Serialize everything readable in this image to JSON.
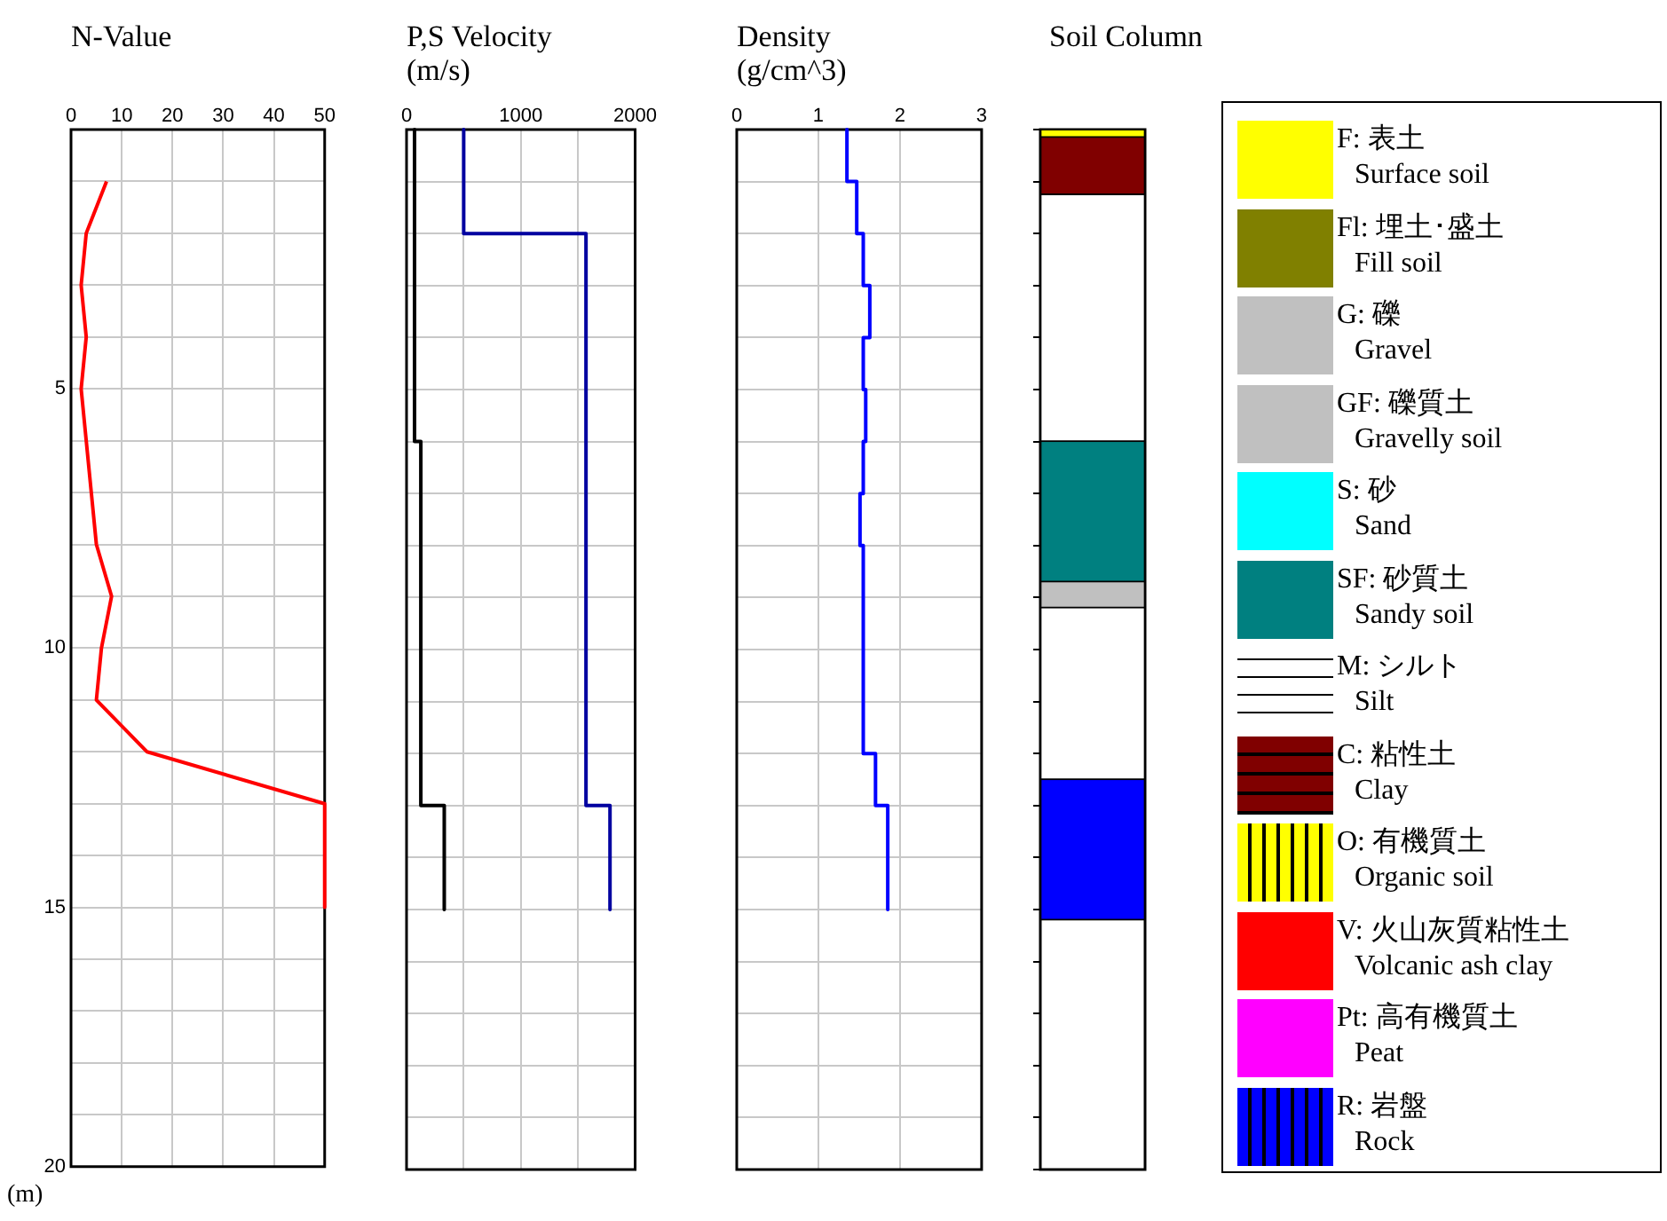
{
  "chart_data": [
    {
      "type": "line",
      "title": "N-Value",
      "ylabel": "(m)",
      "x": [
        7,
        3,
        2,
        3,
        2,
        3,
        4,
        5,
        8,
        6,
        5,
        15,
        50,
        50
      ],
      "values": [
        1,
        2,
        3,
        4,
        5,
        6,
        7,
        8,
        9,
        10,
        11,
        12,
        13,
        15
      ],
      "color": "#ff0000",
      "marker": "none",
      "xlim": [
        0,
        50
      ],
      "xticks": [
        0,
        10,
        20,
        30,
        40,
        50
      ],
      "ylim": [
        20,
        0
      ],
      "yticks": [
        {
          "value": 0,
          "label": null
        },
        {
          "value": 1,
          "label": null
        },
        {
          "value": 2,
          "label": null
        },
        {
          "value": 3,
          "label": null
        },
        {
          "value": 4,
          "label": null
        },
        5,
        {
          "value": 6,
          "label": null
        },
        {
          "value": 7,
          "label": null
        },
        {
          "value": 8,
          "label": null
        },
        {
          "value": 9,
          "label": null
        },
        10,
        {
          "value": 11,
          "label": null
        },
        {
          "value": 12,
          "label": null
        },
        {
          "value": 13,
          "label": null
        },
        {
          "value": 14,
          "label": null
        },
        15,
        {
          "value": 16,
          "label": null
        },
        {
          "value": 17,
          "label": null
        },
        {
          "value": 18,
          "label": null
        },
        {
          "value": 19,
          "label": null
        },
        20
      ],
      "grid": true
    },
    {
      "type": "line",
      "title": "P,S Velocity",
      "subtitle": "(m/s)",
      "series": [
        {
          "color": "#0000a0",
          "x": [
            500,
            500,
            1570,
            1570,
            1780,
            1780
          ],
          "values": [
            0,
            2,
            2,
            13,
            13,
            15
          ]
        },
        {
          "color": "#000000",
          "x": [
            70,
            70,
            125,
            125,
            330,
            330
          ],
          "values": [
            0,
            6,
            6,
            13,
            13,
            15
          ]
        }
      ],
      "marker": "none",
      "xlim": [
        0,
        2000
      ],
      "xticks": [
        0,
        {
          "value": 500,
          "label": null
        },
        1000,
        {
          "value": 1500,
          "label": null
        },
        2000
      ],
      "ylim": [
        20,
        0
      ],
      "yticks": [
        {
          "value": 0,
          "label": null
        },
        {
          "value": 1,
          "label": null
        },
        {
          "value": 2,
          "label": null
        },
        {
          "value": 3,
          "label": null
        },
        {
          "value": 4,
          "label": null
        },
        {
          "value": 5,
          "label": null
        },
        {
          "value": 6,
          "label": null
        },
        {
          "value": 7,
          "label": null
        },
        {
          "value": 8,
          "label": null
        },
        {
          "value": 9,
          "label": null
        },
        {
          "value": 10,
          "label": null
        },
        {
          "value": 11,
          "label": null
        },
        {
          "value": 12,
          "label": null
        },
        {
          "value": 13,
          "label": null
        },
        {
          "value": 14,
          "label": null
        },
        {
          "value": 15,
          "label": null
        },
        {
          "value": 16,
          "label": null
        },
        {
          "value": 17,
          "label": null
        },
        {
          "value": 18,
          "label": null
        },
        {
          "value": 19,
          "label": null
        },
        {
          "value": 20,
          "label": null
        }
      ],
      "tick_labels": "x",
      "grid": true
    },
    {
      "type": "line",
      "title": "Density",
      "subtitle": "(g/cm^3)",
      "x": [
        1.35,
        1.35,
        1.47,
        1.47,
        1.55,
        1.55,
        1.63,
        1.63,
        1.55,
        1.55,
        1.58,
        1.58,
        1.55,
        1.55,
        1.51,
        1.51,
        1.55,
        1.55,
        1.7,
        1.7,
        1.85,
        1.85
      ],
      "values": [
        0,
        1,
        1,
        2,
        2,
        3,
        3,
        4,
        4,
        5,
        5,
        6,
        6,
        7,
        7,
        8,
        8,
        12,
        12,
        13,
        13,
        15
      ],
      "color": "#0000ff",
      "marker": "none",
      "xlim": [
        0,
        3
      ],
      "xticks": [
        0,
        1,
        2,
        3
      ],
      "ylim": [
        20,
        0
      ],
      "yticks": [
        {
          "value": 0,
          "label": null
        },
        {
          "value": 1,
          "label": null
        },
        {
          "value": 2,
          "label": null
        },
        {
          "value": 3,
          "label": null
        },
        {
          "value": 4,
          "label": null
        },
        {
          "value": 5,
          "label": null
        },
        {
          "value": 6,
          "label": null
        },
        {
          "value": 7,
          "label": null
        },
        {
          "value": 8,
          "label": null
        },
        {
          "value": 9,
          "label": null
        },
        {
          "value": 10,
          "label": null
        },
        {
          "value": 11,
          "label": null
        },
        {
          "value": 12,
          "label": null
        },
        {
          "value": 13,
          "label": null
        },
        {
          "value": 14,
          "label": null
        },
        {
          "value": 15,
          "label": null
        },
        {
          "value": 16,
          "label": null
        },
        {
          "value": 17,
          "label": null
        },
        {
          "value": 18,
          "label": null
        },
        {
          "value": 19,
          "label": null
        },
        {
          "value": 20,
          "label": null
        }
      ],
      "tick_labels": "x",
      "grid": true
    },
    {
      "type": "bar",
      "title": "Soil Column",
      "stacked": true,
      "categories": [
        null
      ],
      "series": [
        {
          "color": "#ffff00",
          "values": [
            0.15
          ]
        },
        {
          "color": "#800000",
          "values": [
            1.1
          ]
        },
        {
          "color": "#ffffff",
          "values": [
            4.75
          ]
        },
        {
          "color": "#008080",
          "values": [
            2.7
          ]
        },
        {
          "color": "#c0c0c0",
          "values": [
            0.5
          ]
        },
        {
          "color": "#ffffff",
          "values": [
            3.3
          ]
        },
        {
          "color": "#0000ff",
          "values": [
            2.7
          ]
        }
      ],
      "ylim": [
        20,
        0
      ],
      "yticks": [
        {
          "value": 0,
          "label": null
        },
        {
          "value": 1,
          "label": null
        },
        {
          "value": 2,
          "label": null
        },
        {
          "value": 3,
          "label": null
        },
        {
          "value": 4,
          "label": null
        },
        {
          "value": 5,
          "label": null
        },
        {
          "value": 6,
          "label": null
        },
        {
          "value": 7,
          "label": null
        },
        {
          "value": 8,
          "label": null
        },
        {
          "value": 9,
          "label": null
        },
        {
          "value": 10,
          "label": null
        },
        {
          "value": 11,
          "label": null
        },
        {
          "value": 12,
          "label": null
        },
        {
          "value": 13,
          "label": null
        },
        {
          "value": 14,
          "label": null
        },
        {
          "value": 15,
          "label": null
        },
        {
          "value": 16,
          "label": null
        },
        {
          "value": 17,
          "label": null
        },
        {
          "value": 18,
          "label": null
        },
        {
          "value": 19,
          "label": null
        },
        {
          "value": 20,
          "label": null
        }
      ],
      "tick_labels": false
    },
    {
      "type": "other",
      "annotations": [
        "F: 表土",
        "Surface soil",
        "Fl: 埋土･盛土",
        "Fill soil",
        "G: 礫",
        "Gravel",
        "GF: 礫質土",
        "Gravelly soil",
        "S: 砂",
        "Sand",
        "SF: 砂質土",
        "Sandy soil",
        "M: シルト",
        "Silt",
        "C: 粘性土",
        "Clay",
        "O: 有機質土",
        "Organic soil",
        "V: 火山灰質粘性土",
        "Volcanic ash clay",
        "Pt: 高有機質土",
        "Peat",
        "R: 岩盤",
        "Rock"
      ],
      "colors": [
        "#ffff00",
        "#808000",
        "#c0c0c0",
        "#c0c0c0",
        "#00ffff",
        "#008080",
        "#ffffff",
        "#800000",
        "#ffff00",
        "#ff0000",
        "#ff00ff",
        "#0000ff"
      ]
    }
  ]
}
